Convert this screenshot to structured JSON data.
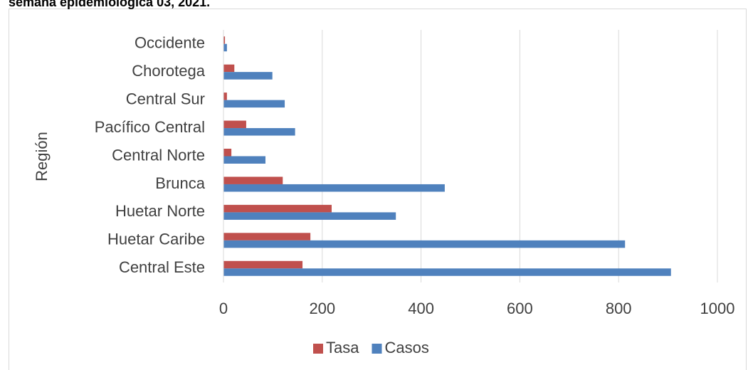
{
  "chart_data": {
    "type": "bar",
    "orientation": "horizontal",
    "title": "semana epidemiológica 03, 2021.",
    "y_label": "Región",
    "categories": [
      "Central Este",
      "Huetar Caribe",
      "Huetar Norte",
      "Brunca",
      "Central Norte",
      "Pacífico Central",
      "Central Sur",
      "Chorotega",
      "Occidente"
    ],
    "series": [
      {
        "name": "Tasa",
        "color": "#c0504d",
        "values": [
          160,
          176,
          219,
          120,
          16,
          46,
          7,
          22,
          3
        ]
      },
      {
        "name": "Casos",
        "color": "#4f81bd",
        "values": [
          906,
          813,
          349,
          448,
          85,
          145,
          124,
          99,
          7
        ]
      }
    ],
    "xlim": [
      0,
      1000
    ],
    "xticks": [
      0,
      200,
      400,
      600,
      800,
      1000
    ],
    "grid": true,
    "legend": "bottom"
  }
}
